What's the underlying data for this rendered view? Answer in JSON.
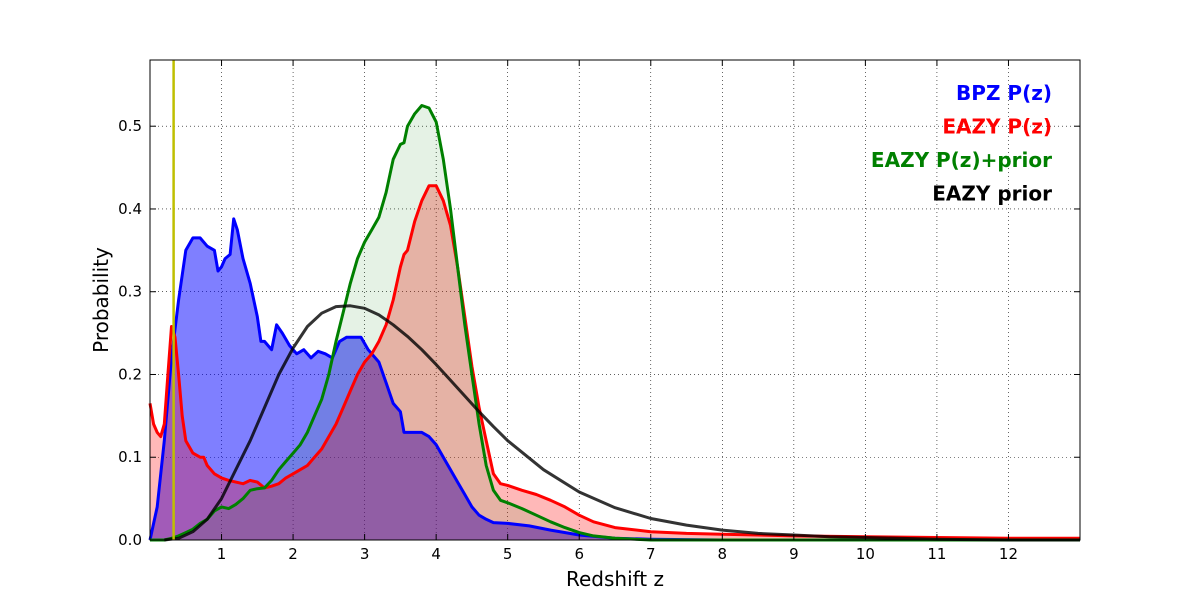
{
  "chart_data": {
    "type": "area",
    "title": "",
    "xlabel": "Redshift z",
    "ylabel": "Probability",
    "xlim": [
      0,
      13
    ],
    "ylim": [
      0,
      0.58
    ],
    "x_ticks": [
      "1",
      "2",
      "3",
      "4",
      "5",
      "6",
      "7",
      "8",
      "9",
      "10",
      "11",
      "12"
    ],
    "y_ticks": [
      "0.0",
      "0.1",
      "0.2",
      "0.3",
      "0.4",
      "0.5"
    ],
    "grid": true,
    "legend_placement": "top-right",
    "vertical_line": {
      "x": 0.33,
      "color": "#bfbf00"
    },
    "series": [
      {
        "name": "BPZ P(z)",
        "color": "#0000ff",
        "fill": "#0000ff",
        "fill_opacity": 0.5,
        "points": [
          [
            0,
            0
          ],
          [
            0.1,
            0.04
          ],
          [
            0.2,
            0.12
          ],
          [
            0.3,
            0.22
          ],
          [
            0.4,
            0.29
          ],
          [
            0.5,
            0.35
          ],
          [
            0.6,
            0.365
          ],
          [
            0.7,
            0.365
          ],
          [
            0.8,
            0.355
          ],
          [
            0.9,
            0.35
          ],
          [
            0.95,
            0.325
          ],
          [
            1.0,
            0.33
          ],
          [
            1.05,
            0.34
          ],
          [
            1.12,
            0.345
          ],
          [
            1.17,
            0.388
          ],
          [
            1.22,
            0.375
          ],
          [
            1.3,
            0.34
          ],
          [
            1.4,
            0.31
          ],
          [
            1.5,
            0.27
          ],
          [
            1.55,
            0.24
          ],
          [
            1.6,
            0.24
          ],
          [
            1.65,
            0.235
          ],
          [
            1.7,
            0.23
          ],
          [
            1.77,
            0.26
          ],
          [
            1.85,
            0.25
          ],
          [
            1.95,
            0.235
          ],
          [
            2.05,
            0.225
          ],
          [
            2.15,
            0.23
          ],
          [
            2.25,
            0.22
          ],
          [
            2.35,
            0.228
          ],
          [
            2.45,
            0.225
          ],
          [
            2.55,
            0.22
          ],
          [
            2.65,
            0.24
          ],
          [
            2.75,
            0.245
          ],
          [
            2.85,
            0.245
          ],
          [
            2.95,
            0.245
          ],
          [
            3.05,
            0.23
          ],
          [
            3.2,
            0.215
          ],
          [
            3.3,
            0.19
          ],
          [
            3.4,
            0.165
          ],
          [
            3.5,
            0.155
          ],
          [
            3.55,
            0.13
          ],
          [
            3.6,
            0.13
          ],
          [
            3.7,
            0.13
          ],
          [
            3.8,
            0.13
          ],
          [
            3.9,
            0.125
          ],
          [
            4.0,
            0.115
          ],
          [
            4.1,
            0.1
          ],
          [
            4.2,
            0.085
          ],
          [
            4.3,
            0.07
          ],
          [
            4.4,
            0.055
          ],
          [
            4.5,
            0.04
          ],
          [
            4.6,
            0.03
          ],
          [
            4.7,
            0.025
          ],
          [
            4.8,
            0.021
          ],
          [
            5.0,
            0.02
          ],
          [
            5.3,
            0.017
          ],
          [
            5.6,
            0.012
          ],
          [
            6.0,
            0.006
          ],
          [
            6.5,
            0.002
          ],
          [
            7,
            0.001
          ],
          [
            8,
            0.0
          ],
          [
            13,
            0.0
          ]
        ]
      },
      {
        "name": "EAZY P(z)",
        "color": "#ff0000",
        "fill": "#ff0000",
        "fill_opacity": 0.28,
        "points": [
          [
            0,
            0.165
          ],
          [
            0.05,
            0.14
          ],
          [
            0.1,
            0.13
          ],
          [
            0.15,
            0.125
          ],
          [
            0.2,
            0.14
          ],
          [
            0.25,
            0.2
          ],
          [
            0.3,
            0.258
          ],
          [
            0.35,
            0.245
          ],
          [
            0.4,
            0.2
          ],
          [
            0.45,
            0.15
          ],
          [
            0.5,
            0.12
          ],
          [
            0.6,
            0.105
          ],
          [
            0.7,
            0.1
          ],
          [
            0.75,
            0.1
          ],
          [
            0.8,
            0.09
          ],
          [
            0.9,
            0.08
          ],
          [
            1.0,
            0.075
          ],
          [
            1.1,
            0.072
          ],
          [
            1.2,
            0.07
          ],
          [
            1.3,
            0.068
          ],
          [
            1.4,
            0.072
          ],
          [
            1.5,
            0.07
          ],
          [
            1.6,
            0.063
          ],
          [
            1.7,
            0.065
          ],
          [
            1.8,
            0.068
          ],
          [
            1.9,
            0.075
          ],
          [
            2.0,
            0.08
          ],
          [
            2.1,
            0.085
          ],
          [
            2.2,
            0.09
          ],
          [
            2.3,
            0.1
          ],
          [
            2.4,
            0.11
          ],
          [
            2.5,
            0.125
          ],
          [
            2.6,
            0.14
          ],
          [
            2.7,
            0.16
          ],
          [
            2.8,
            0.18
          ],
          [
            2.9,
            0.2
          ],
          [
            3.0,
            0.215
          ],
          [
            3.1,
            0.225
          ],
          [
            3.2,
            0.24
          ],
          [
            3.3,
            0.26
          ],
          [
            3.4,
            0.29
          ],
          [
            3.5,
            0.33
          ],
          [
            3.55,
            0.345
          ],
          [
            3.6,
            0.35
          ],
          [
            3.7,
            0.385
          ],
          [
            3.8,
            0.41
          ],
          [
            3.9,
            0.428
          ],
          [
            4.0,
            0.428
          ],
          [
            4.1,
            0.41
          ],
          [
            4.2,
            0.38
          ],
          [
            4.3,
            0.33
          ],
          [
            4.4,
            0.27
          ],
          [
            4.5,
            0.21
          ],
          [
            4.6,
            0.16
          ],
          [
            4.7,
            0.12
          ],
          [
            4.8,
            0.08
          ],
          [
            4.9,
            0.068
          ],
          [
            5.0,
            0.066
          ],
          [
            5.2,
            0.06
          ],
          [
            5.4,
            0.055
          ],
          [
            5.6,
            0.048
          ],
          [
            5.8,
            0.04
          ],
          [
            6.0,
            0.03
          ],
          [
            6.2,
            0.022
          ],
          [
            6.5,
            0.015
          ],
          [
            7.0,
            0.01
          ],
          [
            7.5,
            0.008
          ],
          [
            8,
            0.007
          ],
          [
            9,
            0.005
          ],
          [
            10,
            0.004
          ],
          [
            11,
            0.003
          ],
          [
            12,
            0.002
          ],
          [
            13,
            0.002
          ]
        ]
      },
      {
        "name": "EAZY P(z)+prior",
        "color": "#008000",
        "fill": "#008000",
        "fill_opacity": 0.1,
        "points": [
          [
            0,
            0
          ],
          [
            0.2,
            0.0
          ],
          [
            0.3,
            0.002
          ],
          [
            0.4,
            0.005
          ],
          [
            0.5,
            0.009
          ],
          [
            0.6,
            0.013
          ],
          [
            0.7,
            0.02
          ],
          [
            0.8,
            0.025
          ],
          [
            0.9,
            0.035
          ],
          [
            1.0,
            0.04
          ],
          [
            1.1,
            0.038
          ],
          [
            1.2,
            0.043
          ],
          [
            1.3,
            0.05
          ],
          [
            1.4,
            0.06
          ],
          [
            1.5,
            0.062
          ],
          [
            1.6,
            0.063
          ],
          [
            1.7,
            0.072
          ],
          [
            1.8,
            0.085
          ],
          [
            1.9,
            0.095
          ],
          [
            2.0,
            0.105
          ],
          [
            2.1,
            0.115
          ],
          [
            2.2,
            0.13
          ],
          [
            2.3,
            0.15
          ],
          [
            2.4,
            0.17
          ],
          [
            2.5,
            0.2
          ],
          [
            2.6,
            0.24
          ],
          [
            2.7,
            0.275
          ],
          [
            2.8,
            0.31
          ],
          [
            2.9,
            0.34
          ],
          [
            3.0,
            0.36
          ],
          [
            3.1,
            0.375
          ],
          [
            3.2,
            0.39
          ],
          [
            3.3,
            0.42
          ],
          [
            3.4,
            0.46
          ],
          [
            3.5,
            0.478
          ],
          [
            3.55,
            0.48
          ],
          [
            3.6,
            0.5
          ],
          [
            3.7,
            0.515
          ],
          [
            3.8,
            0.525
          ],
          [
            3.9,
            0.522
          ],
          [
            4.0,
            0.505
          ],
          [
            4.1,
            0.46
          ],
          [
            4.2,
            0.4
          ],
          [
            4.3,
            0.33
          ],
          [
            4.4,
            0.26
          ],
          [
            4.5,
            0.2
          ],
          [
            4.6,
            0.14
          ],
          [
            4.7,
            0.09
          ],
          [
            4.8,
            0.06
          ],
          [
            4.9,
            0.048
          ],
          [
            5.0,
            0.045
          ],
          [
            5.2,
            0.038
          ],
          [
            5.4,
            0.03
          ],
          [
            5.6,
            0.022
          ],
          [
            5.8,
            0.015
          ],
          [
            6.0,
            0.009
          ],
          [
            6.2,
            0.005
          ],
          [
            6.5,
            0.002
          ],
          [
            7.0,
            0.0
          ],
          [
            13,
            0.0
          ]
        ]
      },
      {
        "name": "EAZY prior",
        "color": "#000000",
        "fill": "none",
        "fill_opacity": 0,
        "points": [
          [
            0.2,
            0.0
          ],
          [
            0.4,
            0.002
          ],
          [
            0.6,
            0.01
          ],
          [
            0.8,
            0.025
          ],
          [
            1.0,
            0.05
          ],
          [
            1.2,
            0.085
          ],
          [
            1.4,
            0.12
          ],
          [
            1.6,
            0.16
          ],
          [
            1.8,
            0.2
          ],
          [
            2.0,
            0.232
          ],
          [
            2.2,
            0.258
          ],
          [
            2.4,
            0.274
          ],
          [
            2.6,
            0.282
          ],
          [
            2.8,
            0.283
          ],
          [
            3.0,
            0.28
          ],
          [
            3.2,
            0.272
          ],
          [
            3.4,
            0.26
          ],
          [
            3.6,
            0.246
          ],
          [
            3.8,
            0.23
          ],
          [
            4.0,
            0.212
          ],
          [
            4.2,
            0.193
          ],
          [
            4.4,
            0.174
          ],
          [
            4.6,
            0.155
          ],
          [
            4.8,
            0.137
          ],
          [
            5.0,
            0.12
          ],
          [
            5.5,
            0.085
          ],
          [
            6.0,
            0.058
          ],
          [
            6.5,
            0.039
          ],
          [
            7.0,
            0.026
          ],
          [
            7.5,
            0.018
          ],
          [
            8.0,
            0.012
          ],
          [
            8.5,
            0.008
          ],
          [
            9.0,
            0.006
          ],
          [
            9.5,
            0.004
          ],
          [
            10.0,
            0.003
          ],
          [
            11,
            0.001
          ],
          [
            12,
            0.0
          ],
          [
            13,
            0.0
          ]
        ]
      }
    ],
    "legend": [
      {
        "label": "BPZ P(z)",
        "color": "#0000ff"
      },
      {
        "label": "EAZY P(z)",
        "color": "#ff0000"
      },
      {
        "label": "EAZY P(z)+prior",
        "color": "#008000"
      },
      {
        "label": "EAZY prior",
        "color": "#000000"
      }
    ]
  }
}
